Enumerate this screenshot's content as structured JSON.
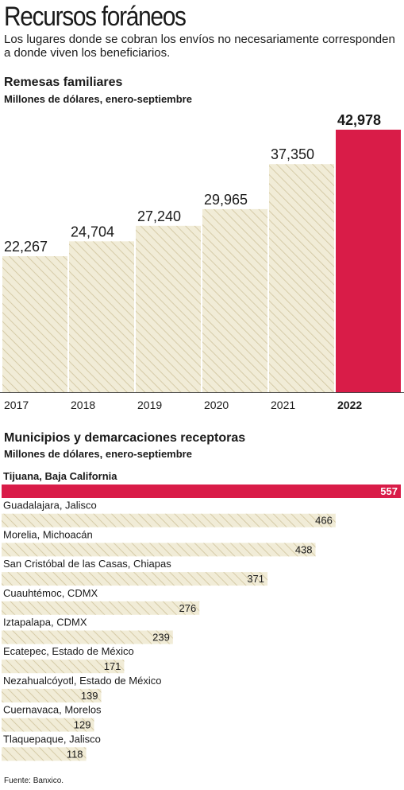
{
  "title": "Recursos foráneos",
  "subtitle": "Los lugares donde se cobran los envíos no necesariamente corresponden a donde viven los beneficiarios.",
  "source": "Fuente: Banxico.",
  "colors": {
    "hatch_bg": "#f1ecd7",
    "hatch_line": "#cfc39c",
    "highlight": "#d91c48",
    "text": "#1a1a1a"
  },
  "chart_data": [
    {
      "type": "bar",
      "title": "Remesas familiares",
      "subtitle": "Millones de dólares, enero-septiembre",
      "categories": [
        "2017",
        "2018",
        "2019",
        "2020",
        "2021",
        "2022"
      ],
      "values": [
        22267,
        24704,
        27240,
        29965,
        37350,
        42978
      ],
      "value_labels": [
        "22,267",
        "24,704",
        "27,240",
        "29,965",
        "37,350",
        "42,978"
      ],
      "highlight": "2022",
      "ylim": [
        0,
        45000
      ]
    },
    {
      "type": "bar",
      "orientation": "horizontal",
      "title": "Municipios y demarcaciones receptoras",
      "subtitle": "Millones de dólares, enero-septiembre",
      "categories": [
        "Tijuana, Baja California",
        "Guadalajara, Jalisco",
        "Morelia, Michoacán",
        "San Cristóbal de las Casas, Chiapas",
        "Cuauhtémoc, CDMX",
        "Iztapalapa, CDMX",
        "Ecatepec, Estado de México",
        "Nezahualcóyotl, Estado de México",
        "Cuernavaca, Morelos",
        "Tlaquepaque, Jalisco"
      ],
      "values": [
        557,
        466,
        438,
        371,
        276,
        239,
        171,
        139,
        129,
        118
      ],
      "highlight": "Tijuana, Baja California",
      "xlim": [
        0,
        557
      ]
    }
  ]
}
